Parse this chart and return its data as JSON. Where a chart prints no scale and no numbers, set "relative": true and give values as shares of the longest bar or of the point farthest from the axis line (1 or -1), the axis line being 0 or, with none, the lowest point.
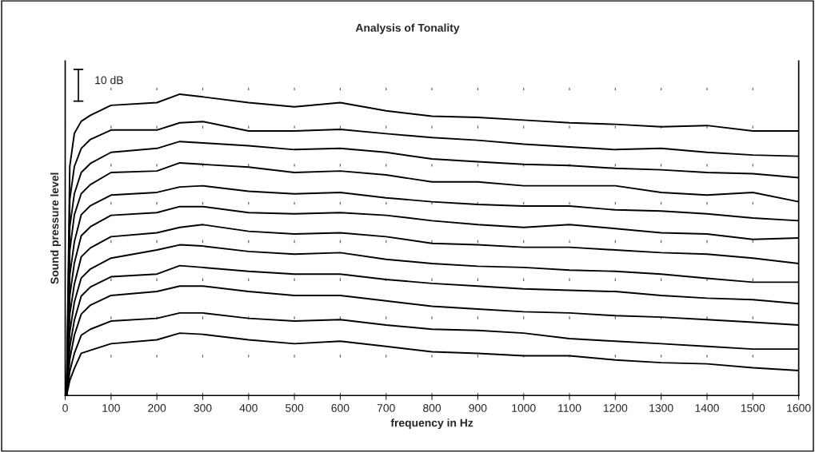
{
  "chart_data": {
    "type": "line",
    "title": "Analysis of Tonality",
    "xlabel": "frequency in Hz",
    "ylabel": "Sound pressure level",
    "relative": true,
    "annotations": [
      "10 dB"
    ],
    "x": [
      3,
      10,
      20,
      35,
      55,
      100,
      200,
      250,
      300,
      400,
      500,
      600,
      700,
      800,
      900,
      1000,
      1100,
      1200,
      1300,
      1400,
      1500,
      1600
    ],
    "series": [
      {
        "color": "#000000",
        "values": [
          0,
          0.76,
          0.87,
          0.91,
          0.93,
          0.963,
          0.972,
          1.0,
          0.991,
          0.972,
          0.958,
          0.972,
          0.945,
          0.927,
          0.923,
          0.914,
          0.905,
          0.9,
          0.892,
          0.896,
          0.878,
          0.878
        ]
      },
      {
        "color": "#000000",
        "values": [
          0,
          0.65,
          0.76,
          0.82,
          0.85,
          0.881,
          0.881,
          0.905,
          0.909,
          0.878,
          0.878,
          0.883,
          0.869,
          0.856,
          0.847,
          0.834,
          0.825,
          0.816,
          0.82,
          0.807,
          0.798,
          0.794
        ]
      },
      {
        "color": "#000000",
        "values": [
          0,
          0.56,
          0.67,
          0.74,
          0.77,
          0.807,
          0.82,
          0.843,
          0.838,
          0.829,
          0.816,
          0.82,
          0.807,
          0.785,
          0.776,
          0.767,
          0.763,
          0.754,
          0.749,
          0.74,
          0.736,
          0.723
        ]
      },
      {
        "color": "#000000",
        "values": [
          0,
          0.48,
          0.6,
          0.67,
          0.7,
          0.74,
          0.745,
          0.772,
          0.767,
          0.758,
          0.74,
          0.745,
          0.732,
          0.709,
          0.709,
          0.696,
          0.696,
          0.696,
          0.674,
          0.665,
          0.674,
          0.643
        ]
      },
      {
        "color": "#000000",
        "values": [
          0,
          0.4,
          0.51,
          0.6,
          0.63,
          0.665,
          0.674,
          0.692,
          0.696,
          0.678,
          0.669,
          0.674,
          0.656,
          0.643,
          0.634,
          0.629,
          0.629,
          0.616,
          0.612,
          0.603,
          0.589,
          0.58
        ]
      },
      {
        "color": "#000000",
        "values": [
          0,
          0.33,
          0.44,
          0.53,
          0.56,
          0.598,
          0.607,
          0.627,
          0.627,
          0.607,
          0.603,
          0.607,
          0.598,
          0.58,
          0.567,
          0.558,
          0.567,
          0.554,
          0.54,
          0.536,
          0.518,
          0.523
        ]
      },
      {
        "color": "#000000",
        "values": [
          0,
          0.27,
          0.37,
          0.46,
          0.49,
          0.527,
          0.54,
          0.558,
          0.567,
          0.545,
          0.536,
          0.54,
          0.527,
          0.505,
          0.5,
          0.492,
          0.492,
          0.483,
          0.474,
          0.469,
          0.456,
          0.438
        ]
      },
      {
        "color": "#000000",
        "values": [
          0,
          0.21,
          0.31,
          0.39,
          0.42,
          0.456,
          0.483,
          0.5,
          0.496,
          0.478,
          0.469,
          0.474,
          0.452,
          0.438,
          0.429,
          0.425,
          0.416,
          0.412,
          0.403,
          0.389,
          0.376,
          0.376
        ]
      },
      {
        "color": "#000000",
        "values": [
          0,
          0.16,
          0.25,
          0.33,
          0.36,
          0.394,
          0.403,
          0.431,
          0.425,
          0.412,
          0.403,
          0.403,
          0.385,
          0.372,
          0.363,
          0.354,
          0.349,
          0.345,
          0.332,
          0.323,
          0.318,
          0.305
        ]
      },
      {
        "color": "#000000",
        "values": [
          0,
          0.12,
          0.2,
          0.27,
          0.3,
          0.332,
          0.345,
          0.363,
          0.363,
          0.345,
          0.332,
          0.332,
          0.314,
          0.296,
          0.287,
          0.278,
          0.274,
          0.265,
          0.26,
          0.252,
          0.243,
          0.234
        ]
      },
      {
        "color": "#000000",
        "values": [
          0,
          0.08,
          0.14,
          0.2,
          0.22,
          0.247,
          0.256,
          0.274,
          0.274,
          0.256,
          0.247,
          0.252,
          0.234,
          0.22,
          0.216,
          0.207,
          0.189,
          0.18,
          0.172,
          0.163,
          0.154,
          0.154
        ]
      },
      {
        "color": "#000000",
        "values": [
          0,
          0.05,
          0.09,
          0.14,
          0.15,
          0.172,
          0.185,
          0.207,
          0.203,
          0.185,
          0.172,
          0.18,
          0.163,
          0.145,
          0.14,
          0.132,
          0.132,
          0.118,
          0.109,
          0.105,
          0.092,
          0.083
        ]
      }
    ],
    "xlim": [
      0,
      1600
    ],
    "xticks": [
      0,
      100,
      200,
      300,
      400,
      500,
      600,
      700,
      800,
      900,
      1000,
      1100,
      1200,
      1300,
      1400,
      1500,
      1600
    ],
    "grid": "x",
    "legend": false,
    "marker": "none",
    "line_style": "solid"
  }
}
